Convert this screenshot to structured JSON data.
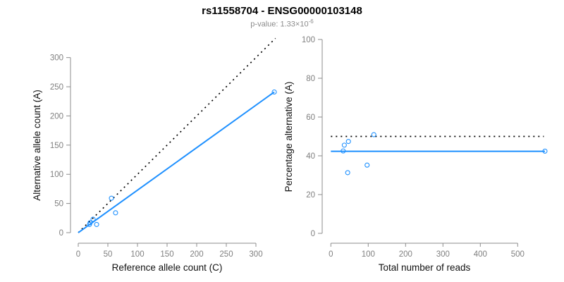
{
  "header": {
    "title": "rs11558704 - ENSG00000103148",
    "subtitle_prefix": "p-value: 1.33×10",
    "subtitle_exponent": "-6"
  },
  "colors": {
    "accent_blue": "#1E90FF",
    "line_black": "#000000",
    "axis_gray": "#8c8c8c",
    "tick_label_gray": "#7f7f7f"
  },
  "chart_data": [
    {
      "type": "scatter",
      "xlabel": "Reference allele count (C)",
      "ylabel": "Alternative allele count (A)",
      "xticks": [
        0,
        50,
        100,
        150,
        200,
        250,
        300
      ],
      "yticks": [
        0,
        50,
        100,
        150,
        200,
        250,
        300
      ],
      "xlim": [
        0,
        335
      ],
      "ylim": [
        0,
        335
      ],
      "grid": false,
      "points": [
        [
          25,
          23
        ],
        [
          20,
          17
        ],
        [
          19,
          14
        ],
        [
          31,
          14
        ],
        [
          63,
          34
        ],
        [
          56,
          59
        ],
        [
          331,
          241
        ]
      ],
      "lines": [
        {
          "name": "identity-dotted",
          "style": "dotted",
          "color": "#000000",
          "from": [
            0,
            0
          ],
          "to": [
            333,
            333
          ]
        },
        {
          "name": "fit-solid",
          "style": "solid",
          "color": "#1E90FF",
          "from": [
            0,
            0
          ],
          "to": [
            331,
            241
          ]
        }
      ]
    },
    {
      "type": "scatter",
      "xlabel": "Total number of reads",
      "ylabel": "Percentage alternative (A)",
      "xticks": [
        0,
        100,
        200,
        300,
        400,
        500
      ],
      "yticks": [
        0,
        20,
        40,
        60,
        80,
        100
      ],
      "xlim": [
        0,
        575
      ],
      "ylim": [
        0,
        100
      ],
      "grid": false,
      "points": [
        [
          47,
          47.4
        ],
        [
          36,
          45.5
        ],
        [
          33,
          42.5
        ],
        [
          45,
          31.3
        ],
        [
          97,
          35.2
        ],
        [
          115,
          50.9
        ],
        [
          573,
          42.4
        ]
      ],
      "lines": [
        {
          "name": "expected-50pct-dotted",
          "style": "dotted",
          "color": "#000000",
          "from": [
            0,
            50
          ],
          "to": [
            570,
            50
          ]
        },
        {
          "name": "observed-ratio-solid",
          "style": "solid",
          "color": "#1E90FF",
          "from": [
            0,
            42.3
          ],
          "to": [
            573,
            42.3
          ]
        }
      ]
    }
  ]
}
